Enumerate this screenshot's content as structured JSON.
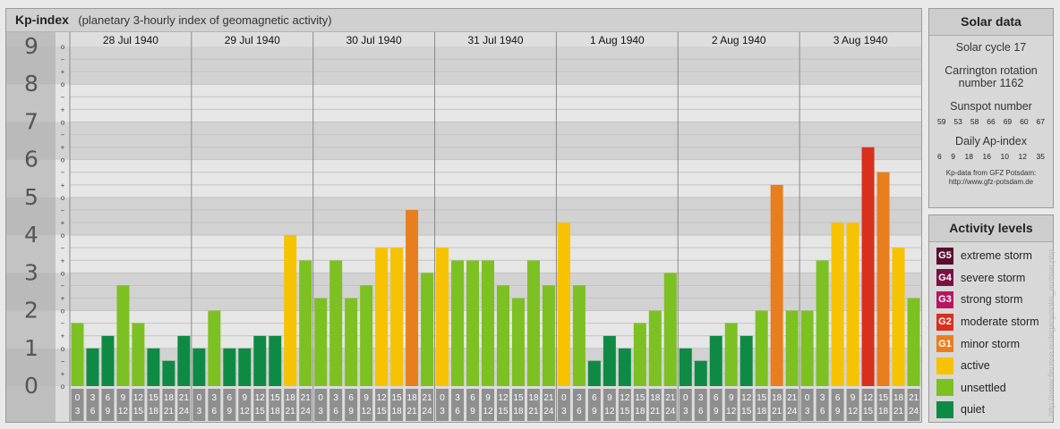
{
  "chart_data": {
    "type": "bar",
    "title": "Kp-index",
    "subtitle": "(planetary 3-hourly index of geomagnetic activity)",
    "ylim": [
      0,
      9
    ],
    "yticks": [
      "0",
      "1",
      "2",
      "3",
      "4",
      "5",
      "6",
      "7",
      "8",
      "9"
    ],
    "minor_ticks": [
      "−",
      "o",
      "+"
    ],
    "dates": [
      "28 Jul 1940",
      "29 Jul 1940",
      "30 Jul 1940",
      "31 Jul 1940",
      "1 Aug 1940",
      "2 Aug 1940",
      "3 Aug 1940"
    ],
    "interval_labels": [
      [
        "0",
        "3"
      ],
      [
        "3",
        "6"
      ],
      [
        "6",
        "9"
      ],
      [
        "9",
        "12"
      ],
      [
        "12",
        "15"
      ],
      [
        "15",
        "18"
      ],
      [
        "18",
        "21"
      ],
      [
        "21",
        "24"
      ]
    ],
    "values": [
      [
        1.67,
        1.0,
        1.33,
        2.67,
        1.67,
        1.0,
        0.67,
        1.33
      ],
      [
        1.0,
        2.0,
        1.0,
        1.0,
        1.33,
        1.33,
        4.0,
        3.33
      ],
      [
        2.33,
        3.33,
        2.33,
        2.67,
        3.67,
        3.67,
        4.67,
        3.0
      ],
      [
        3.67,
        3.33,
        3.33,
        3.33,
        2.67,
        2.33,
        3.33,
        2.67
      ],
      [
        4.33,
        2.67,
        0.67,
        1.33,
        1.0,
        1.67,
        2.0,
        3.0
      ],
      [
        1.0,
        0.67,
        1.33,
        1.67,
        1.33,
        2.0,
        5.33,
        2.0
      ],
      [
        2.0,
        3.33,
        4.33,
        4.33,
        6.33,
        5.67,
        3.67,
        2.33
      ]
    ],
    "colors": {
      "quiet": "#0f8a44",
      "unsettled": "#7cc022",
      "active": "#f7c200",
      "minor_storm": "#e87e1e",
      "moderate_storm": "#d8301c",
      "strong_storm": "#b81462",
      "severe_storm": "#7a1044",
      "extreme_storm": "#5b0d2e"
    }
  },
  "solar": {
    "heading": "Solar data",
    "cycle": "Solar cycle 17",
    "carrington_line1": "Carrington rotation",
    "carrington_line2": "number 1162",
    "sunspot_label": "Sunspot number",
    "sunspot_values": [
      "59",
      "53",
      "58",
      "66",
      "69",
      "60",
      "67"
    ],
    "ap_label": "Daily Ap-index",
    "ap_values": [
      "6",
      "9",
      "18",
      "16",
      "10",
      "12",
      "35"
    ],
    "source_line1": "Kp-data from GFZ Potsdam:",
    "source_line2": "http://www.gfz-potsdam.de"
  },
  "activity": {
    "heading": "Activity levels",
    "levels": [
      {
        "code": "G5",
        "label": "extreme storm",
        "color": "#5b0d2e"
      },
      {
        "code": "G4",
        "label": "severe storm",
        "color": "#7a1044"
      },
      {
        "code": "G3",
        "label": "strong storm",
        "color": "#b81462"
      },
      {
        "code": "G2",
        "label": "moderate storm",
        "color": "#d8301c"
      },
      {
        "code": "G1",
        "label": "minor storm",
        "color": "#e87e1e"
      },
      {
        "code": "",
        "label": "active",
        "color": "#f7c200"
      },
      {
        "code": "",
        "label": "unsettled",
        "color": "#7cc022"
      },
      {
        "code": "",
        "label": "quiet",
        "color": "#0f8a44"
      }
    ]
  },
  "watermark": "http://www.fleusse.eu/legacy/solar_archive.php"
}
